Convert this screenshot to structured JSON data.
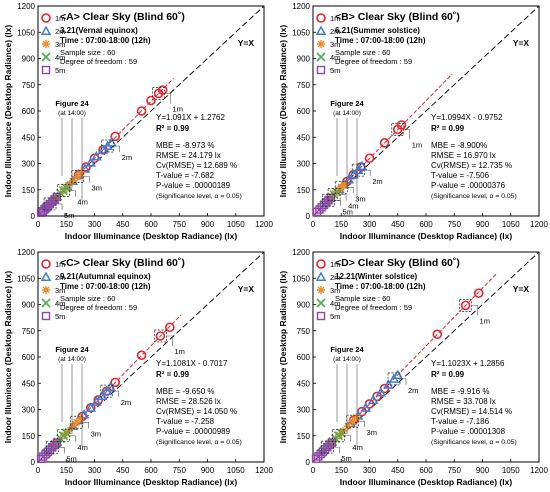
{
  "chart_data": [
    {
      "type": "scatter",
      "panel_title": "<A> Clear Sky (Blind 60˚)",
      "date_line": "3.21(Vernal equinox)",
      "time_line": "Time : 07:00-18:00 (12h)",
      "sample_line": "Sample size : 60",
      "dof_line": "Degree of freedom : 59",
      "identity_label": "Y=X",
      "regression_label": "Y=1.091X + 1.2762",
      "r2_label": "R² = 0.99",
      "stats": [
        "MBE = -8.973 %",
        "RMSE = 24.179 lx",
        "Cv(RMSE) = 12.689 %",
        "T-value = -7.682",
        "P-value = .00000189",
        "(Significance level, α = 0.05)"
      ],
      "figure_label": "Figure 24",
      "figure_time": "(at 14:00)",
      "xlabel": "Indoor Illuminance (Desktop Radiance) (lx)",
      "ylabel": "Indoor Illuminance (Desktop Radiance) (lx)",
      "xlim": [
        0,
        1200
      ],
      "ylim": [
        0,
        1200
      ],
      "ticks": [
        0,
        150,
        300,
        450,
        600,
        750,
        900,
        1050,
        1200
      ],
      "tick_labels": [
        "0",
        "150",
        "300",
        "450",
        "600",
        "750",
        "900",
        "1050",
        "1200"
      ],
      "slope": 1.091,
      "intercept": 1.2762,
      "series": [
        {
          "name": "1m",
          "marker": "circle",
          "color": "#e8212a",
          "x": [
            640,
            662,
            600,
            550,
            410,
            345,
            300,
            255,
            215
          ],
          "y": [
            700,
            720,
            660,
            600,
            455,
            378,
            330,
            280,
            235
          ]
        },
        {
          "name": "2m",
          "marker": "triangle",
          "color": "#3b7fd9",
          "x": [
            390,
            370,
            345,
            310,
            280,
            250,
            215,
            185,
            155
          ],
          "y": [
            420,
            400,
            378,
            340,
            305,
            270,
            235,
            200,
            170
          ]
        },
        {
          "name": "3m",
          "marker": "asterisk",
          "color": "#f08a24",
          "x": [
            230,
            210,
            185,
            160,
            140,
            120,
            100,
            80,
            60
          ],
          "y": [
            250,
            225,
            200,
            175,
            152,
            130,
            110,
            88,
            66
          ]
        },
        {
          "name": "4m",
          "marker": "x",
          "color": "#4caf50",
          "x": [
            150,
            135,
            120,
            105,
            90,
            75,
            62,
            50,
            38
          ],
          "y": [
            160,
            145,
            130,
            113,
            97,
            82,
            68,
            55,
            42
          ]
        },
        {
          "name": "5m",
          "marker": "square",
          "color": "#8e44ad",
          "x": [
            100,
            88,
            76,
            64,
            54,
            44,
            34,
            25,
            16
          ],
          "y": [
            108,
            95,
            82,
            69,
            58,
            48,
            37,
            27,
            18
          ]
        }
      ],
      "annotations": [
        {
          "label": "1m",
          "x": 640,
          "y": 700
        },
        {
          "label": "2m",
          "x": 370,
          "y": 400
        },
        {
          "label": "3m",
          "x": 210,
          "y": 225
        },
        {
          "label": "4m",
          "x": 135,
          "y": 145
        },
        {
          "label": "5m",
          "x": 64,
          "y": 69
        }
      ]
    },
    {
      "type": "scatter",
      "panel_title": "<B> Clear Sky (Blind 60˚)",
      "date_line": "6.21(Summer solstice)",
      "time_line": "Time : 07:00-18:00 (12h)",
      "sample_line": "Sample size : 60",
      "dof_line": "Degree of freedom : 59",
      "identity_label": "Y=X",
      "regression_label": "Y=1.0994X - 0.9752",
      "r2_label": "R² = 0.99",
      "stats": [
        "MBE = -8.900%",
        "RMSE = 16.970 lx",
        "Cv(RMSE) = 12.735 %",
        "T-value = -7.506",
        "P-value = .00000376",
        "(Significance level, α = 0.05)"
      ],
      "figure_label": "Figure 24",
      "figure_time": "(at 14:00)",
      "xlabel": "Indoor Illuminance (Desktop Radiance) (lx)",
      "ylabel": "Indoor Illuminance (Desktop Radiance) (lx)",
      "xlim": [
        0,
        1200
      ],
      "ylim": [
        0,
        1200
      ],
      "ticks": [
        0,
        150,
        300,
        450,
        600,
        750,
        900,
        1050,
        1200
      ],
      "tick_labels": [
        "0",
        "150",
        "300",
        "450",
        "600",
        "750",
        "900",
        "1050",
        "1200"
      ],
      "slope": 1.0994,
      "intercept": -0.9752,
      "series": [
        {
          "name": "1m",
          "marker": "circle",
          "color": "#e8212a",
          "x": [
            470,
            450,
            380,
            300,
            255,
            215,
            180
          ],
          "y": [
            520,
            495,
            418,
            330,
            280,
            236,
            197
          ]
        },
        {
          "name": "2m",
          "marker": "triangle",
          "color": "#3b7fd9",
          "x": [
            260,
            240,
            215,
            190,
            165,
            140
          ],
          "y": [
            285,
            262,
            236,
            208,
            180,
            153
          ]
        },
        {
          "name": "3m",
          "marker": "asterisk",
          "color": "#f08a24",
          "x": [
            165,
            150,
            135,
            118,
            100,
            85
          ],
          "y": [
            180,
            164,
            148,
            129,
            110,
            93
          ]
        },
        {
          "name": "4m",
          "marker": "x",
          "color": "#4caf50",
          "x": [
            125,
            112,
            98,
            85,
            72,
            60
          ],
          "y": [
            137,
            122,
            107,
            93,
            79,
            66
          ]
        },
        {
          "name": "5m",
          "marker": "square",
          "color": "#8e44ad",
          "x": [
            95,
            82,
            70,
            58,
            46,
            34,
            22
          ],
          "y": [
            104,
            90,
            77,
            63,
            50,
            37,
            24
          ]
        }
      ],
      "annotations": [
        {
          "label": "1m",
          "x": 450,
          "y": 495
        },
        {
          "label": "2m",
          "x": 240,
          "y": 262
        },
        {
          "label": "3m",
          "x": 150,
          "y": 164
        },
        {
          "label": "4m",
          "x": 112,
          "y": 122
        },
        {
          "label": "5m",
          "x": 82,
          "y": 90
        }
      ]
    },
    {
      "type": "scatter",
      "panel_title": "<C> Clear Sky (Blind 60˚)",
      "date_line": "9.21(Autumnal equinox)",
      "time_line": "Time : 07:00-18:00 (12h)",
      "sample_line": "Sample size : 60",
      "dof_line": "Degree of freedom : 59",
      "identity_label": "Y=X",
      "regression_label": "Y=1.1081X - 0.7017",
      "r2_label": "R² = 0.99",
      "stats": [
        "MBE = -9.650 %",
        "RMSE = 28.526 lx",
        "Cv(RMSE) = 14.050 %",
        "T-value = -7.258",
        "P-value = .00000989",
        "(Significance level, α = 0.05)"
      ],
      "figure_label": "Figure 24",
      "figure_time": "(at 14:00)",
      "xlabel": "Indoor Illuminance (Desktop Radiance) (lx)",
      "ylabel": "Indoor Illuminance (Desktop Radiance) (lx)",
      "xlim": [
        0,
        1200
      ],
      "ylim": [
        0,
        1200
      ],
      "ticks": [
        0,
        150,
        300,
        450,
        600,
        750,
        900,
        1050,
        1200
      ],
      "tick_labels": [
        "0",
        "150",
        "300",
        "450",
        "600",
        "750",
        "900",
        "1050",
        "1200"
      ],
      "slope": 1.1081,
      "intercept": -0.7017,
      "series": [
        {
          "name": "1m",
          "marker": "circle",
          "color": "#e8212a",
          "x": [
            700,
            650,
            550,
            410,
            365,
            320,
            280,
            235
          ],
          "y": [
            770,
            720,
            610,
            455,
            405,
            355,
            310,
            260
          ]
        },
        {
          "name": "2m",
          "marker": "triangle",
          "color": "#3b7fd9",
          "x": [
            385,
            365,
            340,
            310,
            280,
            245,
            215,
            185
          ],
          "y": [
            428,
            405,
            377,
            343,
            310,
            271,
            238,
            205
          ]
        },
        {
          "name": "3m",
          "marker": "asterisk",
          "color": "#f08a24",
          "x": [
            225,
            205,
            185,
            160,
            140,
            120,
            100,
            80
          ],
          "y": [
            249,
            227,
            205,
            177,
            155,
            133,
            110,
            88
          ]
        },
        {
          "name": "4m",
          "marker": "x",
          "color": "#4caf50",
          "x": [
            150,
            135,
            120,
            105,
            90,
            75,
            60,
            45
          ],
          "y": [
            166,
            150,
            133,
            116,
            100,
            83,
            66,
            50
          ]
        },
        {
          "name": "5m",
          "marker": "square",
          "color": "#8e44ad",
          "x": [
            100,
            88,
            76,
            64,
            52,
            40,
            28,
            16
          ],
          "y": [
            110,
            97,
            84,
            71,
            58,
            44,
            31,
            18
          ]
        }
      ],
      "annotations": [
        {
          "label": "1m",
          "x": 650,
          "y": 720
        },
        {
          "label": "2m",
          "x": 365,
          "y": 405
        },
        {
          "label": "3m",
          "x": 205,
          "y": 227
        },
        {
          "label": "4m",
          "x": 135,
          "y": 150
        },
        {
          "label": "5m",
          "x": 76,
          "y": 84
        }
      ]
    },
    {
      "type": "scatter",
      "panel_title": "<D> Clear Sky (Blind 60˚)",
      "date_line": "12.21(Winter solstice)",
      "time_line": "Time : 07:00-18:00 (12h)",
      "sample_line": "Sample size : 60",
      "dof_line": "Degree of freedom : 59",
      "identity_label": "Y=X",
      "regression_label": "Y=1.1023X + 1.2856",
      "r2_label": "R² = 0.99",
      "stats": [
        "MBE = -9.916 %",
        "RMSE = 33.708 lx",
        "Cv(RMSE) = 14.514 %",
        "T-value = -7.186",
        "P-value = .00001308",
        "(Significance level, α = 0.05)"
      ],
      "figure_label": "Figure 24",
      "figure_time": "(at 14:00)",
      "xlabel": "Indoor Illuminance (Desktop Radiance) (lx)",
      "ylabel": "Indoor Illuminance (Desktop Radiance) (lx)",
      "xlim": [
        0,
        1200
      ],
      "ylim": [
        0,
        1200
      ],
      "ticks": [
        0,
        150,
        300,
        450,
        600,
        750,
        900,
        1050,
        1200
      ],
      "tick_labels": [
        "0",
        "150",
        "300",
        "450",
        "600",
        "750",
        "900",
        "1050",
        "1200"
      ],
      "slope": 1.1023,
      "intercept": 1.2856,
      "series": [
        {
          "name": "1m",
          "marker": "circle",
          "color": "#e8212a",
          "x": [
            880,
            810,
            660,
            380,
            340,
            300,
            260,
            215
          ],
          "y": [
            965,
            895,
            730,
            420,
            375,
            332,
            288,
            238
          ]
        },
        {
          "name": "2m",
          "marker": "triangle",
          "color": "#3b7fd9",
          "x": [
            450,
            430,
            400,
            360,
            320,
            280,
            240,
            200
          ],
          "y": [
            497,
            475,
            441,
            397,
            354,
            310,
            265,
            221
          ]
        },
        {
          "name": "3m",
          "marker": "asterisk",
          "color": "#f08a24",
          "x": [
            230,
            210,
            185,
            160,
            140,
            120,
            100,
            80
          ],
          "y": [
            255,
            233,
            205,
            177,
            155,
            133,
            111,
            89
          ]
        },
        {
          "name": "4m",
          "marker": "x",
          "color": "#4caf50",
          "x": [
            150,
            135,
            120,
            105,
            90,
            75,
            60,
            45
          ],
          "y": [
            166,
            150,
            133,
            117,
            100,
            84,
            67,
            50
          ]
        },
        {
          "name": "5m",
          "marker": "square",
          "color": "#8e44ad",
          "x": [
            100,
            88,
            76,
            64,
            52,
            40,
            28,
            16
          ],
          "y": [
            111,
            98,
            85,
            72,
            59,
            45,
            32,
            19
          ]
        }
      ],
      "annotations": [
        {
          "label": "1m",
          "x": 810,
          "y": 895
        },
        {
          "label": "2m",
          "x": 430,
          "y": 475
        },
        {
          "label": "3m",
          "x": 210,
          "y": 233
        },
        {
          "label": "4m",
          "x": 135,
          "y": 150
        },
        {
          "label": "5m",
          "x": 76,
          "y": 85
        }
      ]
    }
  ]
}
